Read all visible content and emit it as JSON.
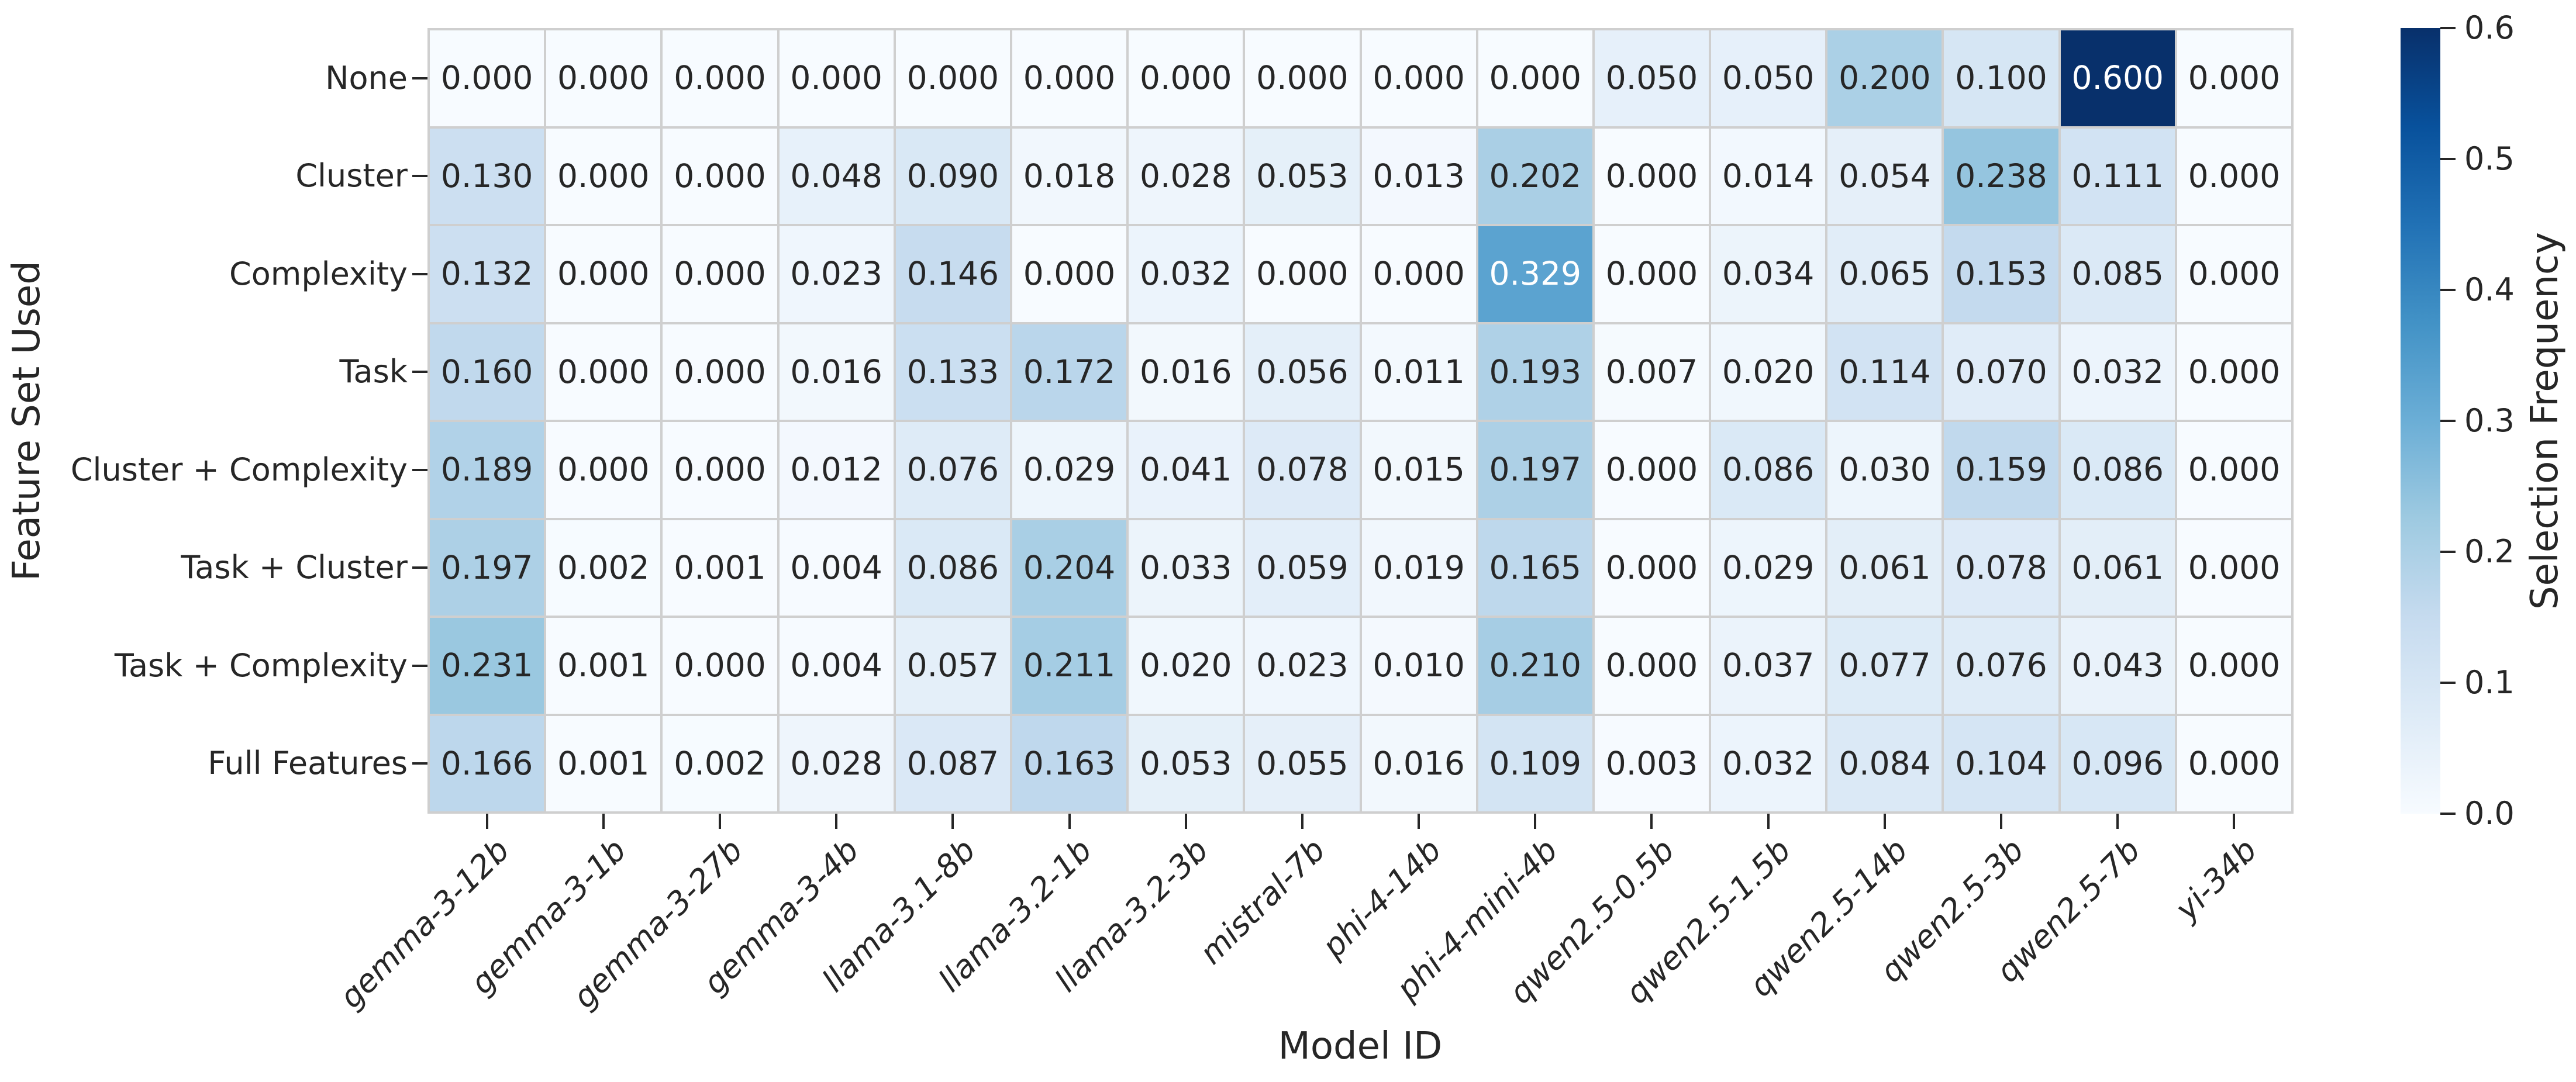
{
  "chart_data": {
    "type": "heatmap",
    "title": "",
    "xlabel": "Model ID",
    "ylabel": "Feature Set Used",
    "colorbar_label": "Selection Frequency",
    "colormap": "Blues",
    "vmin": 0.0,
    "vmax": 0.6,
    "value_decimals": 3,
    "grid_on": false,
    "legend_position": "right-colorbar",
    "columns": [
      "gemma-3-12b",
      "gemma-3-1b",
      "gemma-3-27b",
      "gemma-3-4b",
      "llama-3.1-8b",
      "llama-3.2-1b",
      "llama-3.2-3b",
      "mistral-7b",
      "phi-4-14b",
      "phi-4-mini-4b",
      "qwen2.5-0.5b",
      "qwen2.5-1.5b",
      "qwen2.5-14b",
      "qwen2.5-3b",
      "qwen2.5-7b",
      "yi-34b"
    ],
    "rows": [
      "None",
      "Cluster",
      "Complexity",
      "Task",
      "Cluster + Complexity",
      "Task + Cluster",
      "Task + Complexity",
      "Full Features"
    ],
    "values": [
      [
        0.0,
        0.0,
        0.0,
        0.0,
        0.0,
        0.0,
        0.0,
        0.0,
        0.0,
        0.0,
        0.05,
        0.05,
        0.2,
        0.1,
        0.6,
        0.0
      ],
      [
        0.13,
        0.0,
        0.0,
        0.048,
        0.09,
        0.018,
        0.028,
        0.053,
        0.013,
        0.202,
        0.0,
        0.014,
        0.054,
        0.238,
        0.111,
        0.0
      ],
      [
        0.132,
        0.0,
        0.0,
        0.023,
        0.146,
        0.0,
        0.032,
        0.0,
        0.0,
        0.329,
        0.0,
        0.034,
        0.065,
        0.153,
        0.085,
        0.0
      ],
      [
        0.16,
        0.0,
        0.0,
        0.016,
        0.133,
        0.172,
        0.016,
        0.056,
        0.011,
        0.193,
        0.007,
        0.02,
        0.114,
        0.07,
        0.032,
        0.0
      ],
      [
        0.189,
        0.0,
        0.0,
        0.012,
        0.076,
        0.029,
        0.041,
        0.078,
        0.015,
        0.197,
        0.0,
        0.086,
        0.03,
        0.159,
        0.086,
        0.0
      ],
      [
        0.197,
        0.002,
        0.001,
        0.004,
        0.086,
        0.204,
        0.033,
        0.059,
        0.019,
        0.165,
        0.0,
        0.029,
        0.061,
        0.078,
        0.061,
        0.0
      ],
      [
        0.231,
        0.001,
        0.0,
        0.004,
        0.057,
        0.211,
        0.02,
        0.023,
        0.01,
        0.21,
        0.0,
        0.037,
        0.077,
        0.076,
        0.043,
        0.0
      ],
      [
        0.166,
        0.001,
        0.002,
        0.028,
        0.087,
        0.163,
        0.053,
        0.055,
        0.016,
        0.109,
        0.003,
        0.032,
        0.084,
        0.104,
        0.096,
        0.0
      ]
    ],
    "colorbar_ticks": [
      0.0,
      0.1,
      0.2,
      0.3,
      0.4,
      0.5,
      0.6
    ],
    "colors": {
      "colormap_anchors": [
        "#f7fbff",
        "#deebf7",
        "#c6dbef",
        "#9ecae1",
        "#6baed6",
        "#4292c6",
        "#2171b5",
        "#08519c",
        "#08306b"
      ],
      "annotation_text": "#262626",
      "annotation_text_light": "#ffffff",
      "tick_text": "#262626",
      "gridline": "#cfcfcf",
      "background": "#ffffff"
    }
  }
}
